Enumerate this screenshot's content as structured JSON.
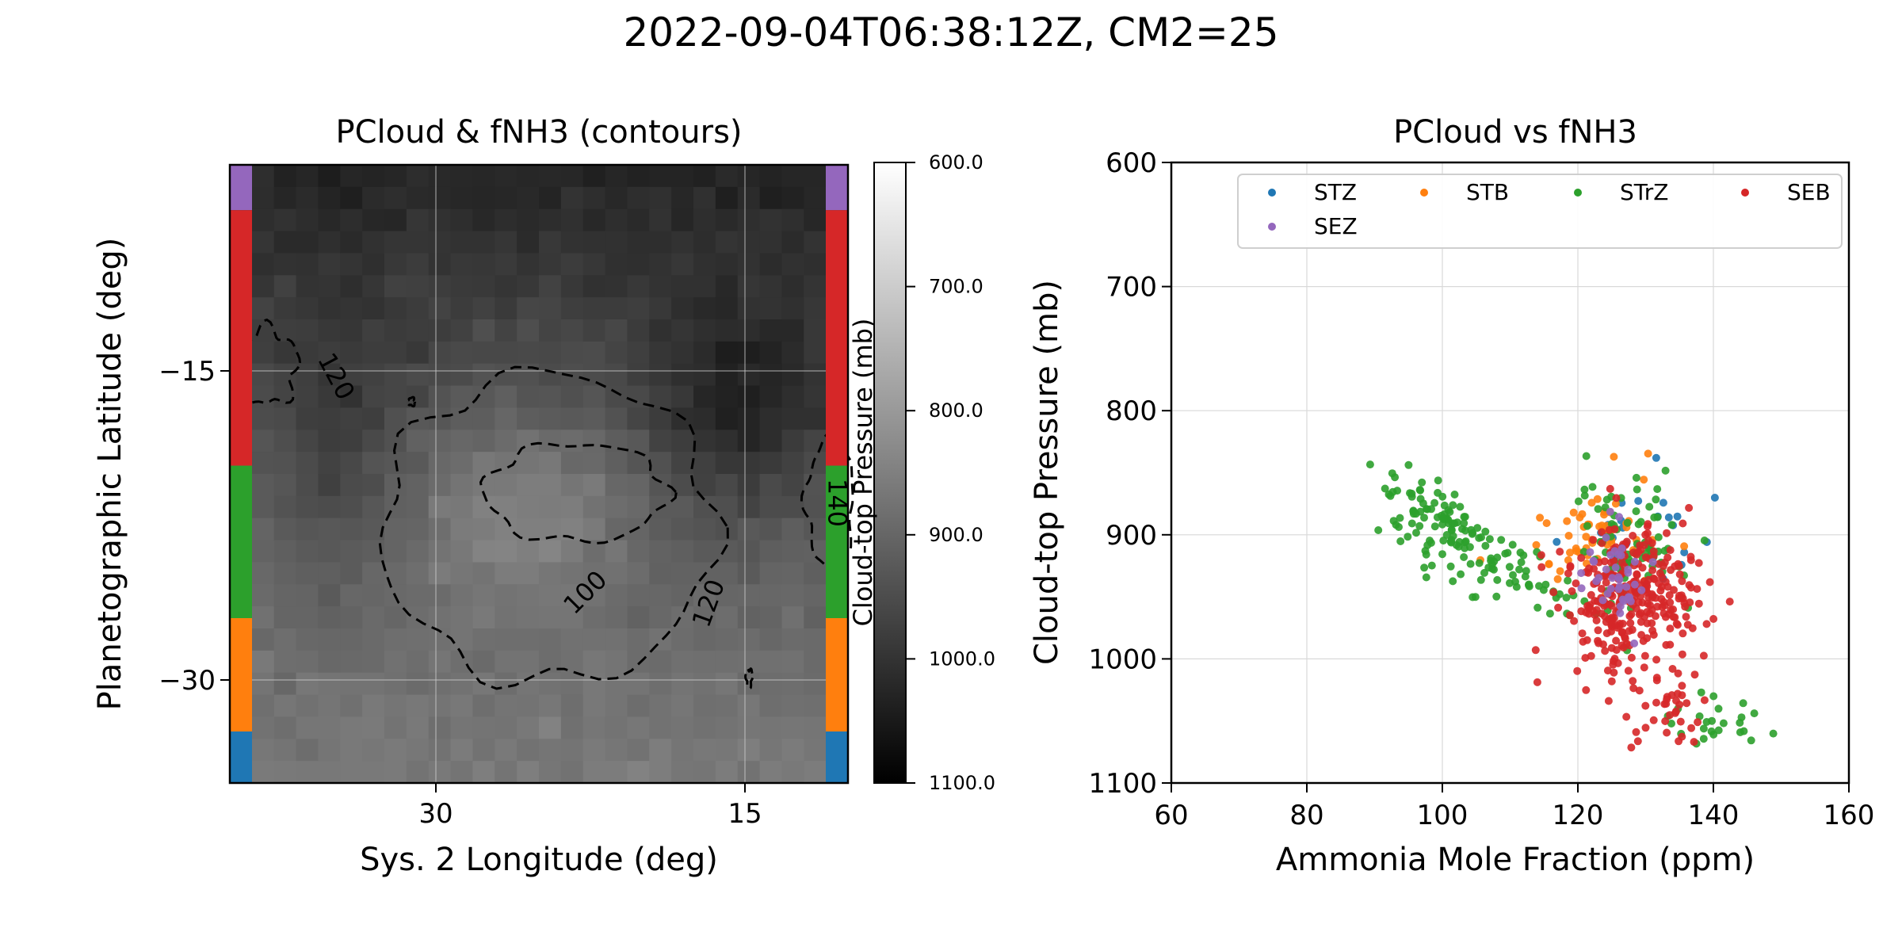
{
  "figure": {
    "suptitle": "2022-09-04T06:38:12Z, CM2=25"
  },
  "chart_data": [
    {
      "type": "heatmap",
      "title": "PCloud & fNH3 (contours)",
      "xlabel": "Sys. 2 Longitude (deg)",
      "ylabel": "Planetographic Latitude (deg)",
      "xlim": [
        40,
        10
      ],
      "ylim": [
        -35,
        -5
      ],
      "xticks": [
        30,
        15
      ],
      "xtick_labels": [
        "30",
        "15"
      ],
      "yticks": [
        -15,
        -30
      ],
      "ytick_labels": [
        "−15",
        "−30"
      ],
      "grid": true,
      "colormap": "gray",
      "colorbar": {
        "label": "Cloud-top Pressure (mb)",
        "range": [
          1100,
          600
        ],
        "ticks": [
          600,
          700,
          800,
          900,
          1000,
          1100
        ],
        "tick_labels": [
          "600.0",
          "700.0",
          "800.0",
          "900.0",
          "1000.0",
          "1100.0"
        ]
      },
      "contour_labels": [
        {
          "text": "120",
          "lon": 34.9,
          "lat": -15.3,
          "angle": 62
        },
        {
          "text": "100",
          "lon": 22.7,
          "lat": -25.8,
          "angle": -45
        },
        {
          "text": "120",
          "lon": 16.7,
          "lat": -26.3,
          "angle": -70
        },
        {
          "text": "140",
          "lon": 10.6,
          "lat": -21.4,
          "angle": 90
        }
      ],
      "band_strip": [
        {
          "zone": "SEZ",
          "lat_top": -5.0,
          "lat_bottom": -7.2,
          "color": "#9467bd"
        },
        {
          "zone": "SEB",
          "lat_top": -7.2,
          "lat_bottom": -19.6,
          "color": "#d62728"
        },
        {
          "zone": "STrZ",
          "lat_top": -19.6,
          "lat_bottom": -27.0,
          "color": "#2ca02c"
        },
        {
          "zone": "STB",
          "lat_top": -27.0,
          "lat_bottom": -32.5,
          "color": "#ff7f0e"
        },
        {
          "zone": "STZ",
          "lat_top": -32.5,
          "lat_bottom": -35.0,
          "color": "#1f77b4"
        }
      ]
    },
    {
      "type": "scatter",
      "title": "PCloud vs fNH3",
      "xlabel": "Ammonia Mole Fraction (ppm)",
      "ylabel": "Cloud-top Pressure (mb)",
      "xlim": [
        60,
        160
      ],
      "ylim": [
        1100,
        600
      ],
      "xticks": [
        60,
        80,
        100,
        120,
        140,
        160
      ],
      "yticks": [
        600,
        700,
        800,
        900,
        1000,
        1100
      ],
      "grid": true,
      "legend": {
        "placement": "top-right",
        "ncol": 4
      },
      "series": [
        {
          "name": "STZ",
          "color": "#1f77b4",
          "center": [
            128,
            905
          ],
          "spread": [
            5,
            20
          ],
          "n": 25
        },
        {
          "name": "STB",
          "color": "#ff7f0e",
          "center": [
            123,
            905
          ],
          "spread": [
            5,
            22
          ],
          "n": 60
        },
        {
          "name": "STrZ",
          "color": "#2ca02c",
          "clusters": [
            {
              "center": [
                98,
                890
              ],
              "spread": [
                3.5,
                18
              ],
              "n": 90
            },
            {
              "center": [
                110,
                930
              ],
              "spread": [
                4.5,
                15
              ],
              "n": 60
            },
            {
              "center": [
                127,
                905
              ],
              "spread": [
                5,
                30
              ],
              "n": 80
            },
            {
              "center": [
                140,
                1050
              ],
              "spread": [
                3,
                12
              ],
              "n": 25
            }
          ]
        },
        {
          "name": "SEB",
          "color": "#d62728",
          "clusters": [
            {
              "center": [
                128,
                950
              ],
              "spread": [
                5,
                30
              ],
              "n": 290
            },
            {
              "center": [
                134,
                1035
              ],
              "spread": [
                3.5,
                18
              ],
              "n": 40
            }
          ]
        },
        {
          "name": "SEZ",
          "color": "#9467bd",
          "center": [
            126,
            925
          ],
          "spread": [
            2.5,
            20
          ],
          "n": 40
        }
      ]
    }
  ]
}
